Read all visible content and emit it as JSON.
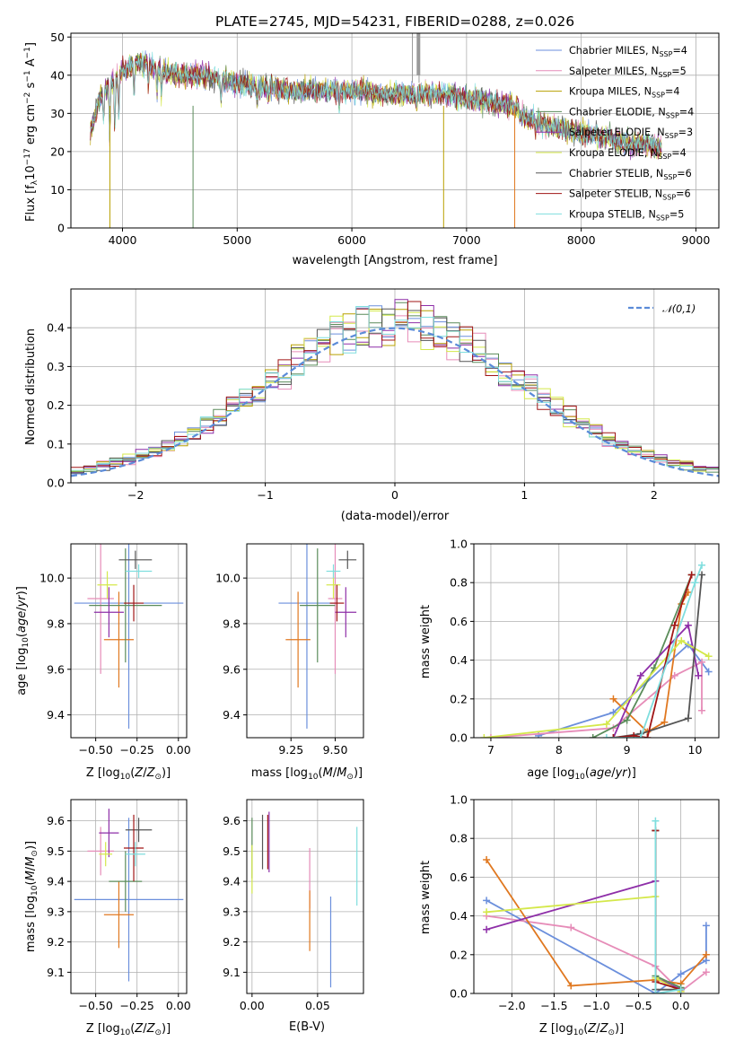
{
  "chart_data": [
    {
      "type": "line",
      "title": "PLATE=2745, MJD=54231, FIBERID=0288, z=0.026",
      "xlabel": "wavelength [Angstrom, rest frame]",
      "ylabel": "Flux [f_λ 10^-17 erg cm^-2 s^-1 A^-1]",
      "xlim": [
        3550,
        9200
      ],
      "ylim": [
        0,
        51
      ],
      "xticks": [
        4000,
        5000,
        6000,
        7000,
        8000,
        9000
      ],
      "yticks": [
        0,
        10,
        20,
        30,
        40,
        50
      ],
      "legend_position": "top-right",
      "series": [
        {
          "name": "Chabrier MILES, N_SSP=4",
          "color": "#6b8fdc"
        },
        {
          "name": "Salpeter MILES, N_SSP=5",
          "color": "#e68cb8"
        },
        {
          "name": "Kroupa MILES, N_SSP=4",
          "color": "#b8a000"
        },
        {
          "name": "Chabrier ELODIE, N_SSP=4",
          "color": "#5a8c5a"
        },
        {
          "name": "Salpeter ELODIE, N_SSP=3",
          "color": "#8e2fa8"
        },
        {
          "name": "Kroupa ELODIE, N_SSP=4",
          "color": "#d4e84a"
        },
        {
          "name": "Chabrier STELIB, N_SSP=6",
          "color": "#555555"
        },
        {
          "name": "Salpeter STELIB, N_SSP=6",
          "color": "#a01616"
        },
        {
          "name": "Kroupa STELIB, N_SSP=5",
          "color": "#7fdede"
        }
      ],
      "continuum": {
        "x": [
          3720,
          3800,
          3900,
          4000,
          4100,
          4200,
          4300,
          4500,
          4700,
          5000,
          5200,
          5500,
          5800,
          6000,
          6300,
          6600,
          6800,
          7000,
          7200,
          7400,
          7600,
          7800,
          8000,
          8200,
          8400,
          8600,
          8700
        ],
        "y": [
          25,
          34,
          38,
          41,
          43,
          43,
          42,
          40,
          40,
          38,
          37,
          36,
          36,
          36,
          35,
          35,
          35,
          34,
          33,
          32,
          30,
          28,
          27,
          26,
          24,
          24,
          23
        ]
      }
    },
    {
      "type": "bar",
      "xlabel": "(data-model)/error",
      "ylabel": "Normed distribution",
      "xlim": [
        -2.5,
        2.5
      ],
      "ylim": [
        0,
        0.5
      ],
      "xticks": [
        -2,
        -1,
        0,
        1,
        2
      ],
      "yticks": [
        0.0,
        0.1,
        0.2,
        0.3,
        0.4
      ],
      "legend": "𝒩(0,1)",
      "legend_position": "top-right",
      "normal_curve": {
        "mean": 0,
        "sigma": 1,
        "color": "#5b8bd8"
      }
    },
    {
      "type": "scatter",
      "xlabel": "Z [log10(Z/Z⊙)]",
      "ylabel": "age  [log10(age/yr)]",
      "xlim": [
        -0.65,
        0.05
      ],
      "ylim": [
        9.3,
        10.15
      ],
      "xticks": [
        -0.5,
        -0.25,
        0.0
      ],
      "xticklabels": [
        "−0.50",
        "−0.25",
        "0.00"
      ],
      "yticks": [
        9.4,
        9.6,
        9.8,
        10.0
      ],
      "points": [
        {
          "x": -0.3,
          "y": 9.89,
          "xerr": 0.33,
          "yerr": 0.55,
          "color": "#6b8fdc"
        },
        {
          "x": -0.47,
          "y": 9.91,
          "xerr": 0.08,
          "yerr": 0.33,
          "color": "#e68cb8"
        },
        {
          "x": -0.36,
          "y": 9.73,
          "xerr": 0.09,
          "yerr": 0.21,
          "color": "#e07820"
        },
        {
          "x": -0.32,
          "y": 9.88,
          "xerr": 0.22,
          "yerr": 0.25,
          "color": "#5a8c5a"
        },
        {
          "x": -0.42,
          "y": 9.85,
          "xerr": 0.09,
          "yerr": 0.11,
          "color": "#8e2fa8"
        },
        {
          "x": -0.43,
          "y": 9.97,
          "xerr": 0.06,
          "yerr": 0.06,
          "color": "#d4e84a"
        },
        {
          "x": -0.26,
          "y": 10.08,
          "xerr": 0.1,
          "yerr": 0.04,
          "color": "#555555"
        },
        {
          "x": -0.27,
          "y": 9.89,
          "xerr": 0.06,
          "yerr": 0.08,
          "color": "#a01616"
        },
        {
          "x": -0.24,
          "y": 10.03,
          "xerr": 0.08,
          "yerr": 0.03,
          "color": "#7fdede"
        }
      ]
    },
    {
      "type": "scatter",
      "xlabel": "mass [log10(M/M⊙)]",
      "ylabel": "",
      "xlim": [
        9.0,
        9.66
      ],
      "ylim": [
        9.3,
        10.15
      ],
      "xticks": [
        9.25,
        9.5
      ],
      "xticklabels": [
        "9.25",
        "9.50"
      ],
      "yticks": [
        9.4,
        9.6,
        9.8,
        10.0
      ],
      "points": [
        {
          "x": 9.34,
          "y": 9.89,
          "xerr": 0.16,
          "yerr": 0.55,
          "color": "#6b8fdc"
        },
        {
          "x": 9.5,
          "y": 9.91,
          "xerr": 0.04,
          "yerr": 0.33,
          "color": "#e68cb8"
        },
        {
          "x": 9.29,
          "y": 9.73,
          "xerr": 0.07,
          "yerr": 0.21,
          "color": "#e07820"
        },
        {
          "x": 9.4,
          "y": 9.88,
          "xerr": 0.1,
          "yerr": 0.25,
          "color": "#5a8c5a"
        },
        {
          "x": 9.56,
          "y": 9.85,
          "xerr": 0.06,
          "yerr": 0.11,
          "color": "#8e2fa8"
        },
        {
          "x": 9.49,
          "y": 9.97,
          "xerr": 0.04,
          "yerr": 0.06,
          "color": "#d4e84a"
        },
        {
          "x": 9.57,
          "y": 10.08,
          "xerr": 0.05,
          "yerr": 0.04,
          "color": "#555555"
        },
        {
          "x": 9.51,
          "y": 9.89,
          "xerr": 0.04,
          "yerr": 0.08,
          "color": "#a01616"
        },
        {
          "x": 9.49,
          "y": 10.03,
          "xerr": 0.04,
          "yerr": 0.03,
          "color": "#7fdede"
        }
      ]
    },
    {
      "type": "line",
      "xlabel": "age  [log10(age/yr)]",
      "ylabel": "mass weight",
      "xlim": [
        6.75,
        10.35
      ],
      "ylim": [
        0,
        1.0
      ],
      "xticks": [
        7,
        8,
        9,
        10
      ],
      "yticks": [
        0.0,
        0.2,
        0.4,
        0.6,
        0.8,
        1.0
      ],
      "series": [
        {
          "color": "#6b8fdc",
          "x": [
            7.7,
            8.8,
            9.9,
            10.2
          ],
          "y": [
            0.01,
            0.13,
            0.48,
            0.34
          ]
        },
        {
          "color": "#e68cb8",
          "x": [
            7.0,
            8.8,
            9.7,
            10.1,
            10.1
          ],
          "y": [
            0.0,
            0.05,
            0.32,
            0.39,
            0.14
          ]
        },
        {
          "color": "#e07820",
          "x": [
            8.8,
            9.3,
            9.55,
            9.8,
            9.9
          ],
          "y": [
            0.2,
            0.03,
            0.08,
            0.69,
            0.75
          ]
        },
        {
          "color": "#5a8c5a",
          "x": [
            8.5,
            9.0,
            9.4,
            9.95
          ],
          "y": [
            0.0,
            0.09,
            0.36,
            0.84
          ]
        },
        {
          "color": "#8e2fa8",
          "x": [
            8.8,
            9.2,
            9.9,
            10.05
          ],
          "y": [
            0.0,
            0.32,
            0.58,
            0.32
          ]
        },
        {
          "color": "#d4e84a",
          "x": [
            6.9,
            8.7,
            9.8,
            10.2
          ],
          "y": [
            0.0,
            0.07,
            0.5,
            0.42
          ]
        },
        {
          "color": "#555555",
          "x": [
            8.8,
            9.2,
            9.9,
            10.1
          ],
          "y": [
            0.0,
            0.02,
            0.1,
            0.84
          ]
        },
        {
          "color": "#a01616",
          "x": [
            8.8,
            9.1,
            9.3,
            9.7,
            9.95
          ],
          "y": [
            0.0,
            0.01,
            0.0,
            0.58,
            0.84
          ]
        },
        {
          "color": "#7fdede",
          "x": [
            8.7,
            9.2,
            10.0,
            10.1
          ],
          "y": [
            0.0,
            0.0,
            0.8,
            0.89
          ]
        }
      ]
    },
    {
      "type": "scatter",
      "xlabel": "Z [log10(Z/Z⊙)]",
      "ylabel": "mass [log10(M/M⊙)]",
      "xlim": [
        -0.65,
        0.05
      ],
      "ylim": [
        9.03,
        9.67
      ],
      "xticks": [
        -0.5,
        -0.25,
        0.0
      ],
      "xticklabels": [
        "−0.50",
        "−0.25",
        "0.00"
      ],
      "yticks": [
        9.1,
        9.2,
        9.3,
        9.4,
        9.5,
        9.6
      ],
      "points": [
        {
          "x": -0.3,
          "y": 9.34,
          "xerr": 0.33,
          "yerr": 0.27,
          "color": "#6b8fdc"
        },
        {
          "x": -0.47,
          "y": 9.5,
          "xerr": 0.08,
          "yerr": 0.08,
          "color": "#e68cb8"
        },
        {
          "x": -0.36,
          "y": 9.29,
          "xerr": 0.09,
          "yerr": 0.11,
          "color": "#e07820"
        },
        {
          "x": -0.32,
          "y": 9.4,
          "xerr": 0.1,
          "yerr": 0.1,
          "color": "#5a8c5a"
        },
        {
          "x": -0.42,
          "y": 9.56,
          "xerr": 0.06,
          "yerr": 0.08,
          "color": "#8e2fa8"
        },
        {
          "x": -0.44,
          "y": 9.49,
          "xerr": 0.04,
          "yerr": 0.04,
          "color": "#d4e84a"
        },
        {
          "x": -0.24,
          "y": 9.57,
          "xerr": 0.08,
          "yerr": 0.04,
          "color": "#555555"
        },
        {
          "x": -0.27,
          "y": 9.51,
          "xerr": 0.06,
          "yerr": 0.11,
          "color": "#a01616"
        },
        {
          "x": -0.26,
          "y": 9.49,
          "xerr": 0.06,
          "yerr": 0.04,
          "color": "#7fdede"
        }
      ]
    },
    {
      "type": "scatter",
      "xlabel": "E(B-V)",
      "ylabel": "",
      "xlim": [
        -0.004,
        0.085
      ],
      "ylim": [
        9.03,
        9.67
      ],
      "xticks": [
        0.0,
        0.05
      ],
      "xticklabels": [
        "0.00",
        "0.05"
      ],
      "yticks": [
        9.1,
        9.2,
        9.3,
        9.4,
        9.5,
        9.6
      ],
      "points": [
        {
          "x": 0.06,
          "y": 9.2,
          "yerr": 0.15,
          "color": "#6b8fdc"
        },
        {
          "x": 0.044,
          "y": 9.41,
          "yerr": 0.1,
          "color": "#e68cb8"
        },
        {
          "x": 0.044,
          "y": 9.27,
          "yerr": 0.1,
          "color": "#e07820"
        },
        {
          "x": 0.0,
          "y": 9.51,
          "yerr": 0.1,
          "color": "#5a8c5a"
        },
        {
          "x": 0.013,
          "y": 9.53,
          "yerr": 0.1,
          "color": "#8e2fa8"
        },
        {
          "x": 0.0,
          "y": 9.44,
          "yerr": 0.08,
          "color": "#d4e84a"
        },
        {
          "x": 0.008,
          "y": 9.53,
          "yerr": 0.09,
          "color": "#555555"
        },
        {
          "x": 0.012,
          "y": 9.53,
          "yerr": 0.09,
          "color": "#a01616"
        },
        {
          "x": 0.08,
          "y": 9.45,
          "yerr": 0.13,
          "color": "#7fdede"
        }
      ]
    },
    {
      "type": "line",
      "xlabel": "Z [log10(Z/Z⊙)]",
      "ylabel": "mass weight",
      "xlim": [
        -2.45,
        0.45
      ],
      "ylim": [
        0,
        1.0
      ],
      "xticks": [
        -2.0,
        -1.5,
        -1.0,
        -0.5,
        0.0
      ],
      "xticklabels": [
        "−2.0",
        "−1.5",
        "−1.0",
        "−0.5",
        "0.0"
      ],
      "yticks": [
        0.0,
        0.2,
        0.4,
        0.6,
        0.8,
        1.0
      ],
      "series": [
        {
          "color": "#6b8fdc",
          "x": [
            -2.3,
            -0.3,
            0.0,
            0.3,
            0.3
          ],
          "y": [
            0.48,
            0.0,
            0.1,
            0.17,
            0.35
          ]
        },
        {
          "color": "#e68cb8",
          "x": [
            -2.3,
            -1.3,
            -0.3,
            0.0,
            0.3
          ],
          "y": [
            0.4,
            0.34,
            0.14,
            0.01,
            0.11
          ]
        },
        {
          "color": "#e07820",
          "x": [
            -2.3,
            -1.3,
            -0.3,
            0.0,
            0.3
          ],
          "y": [
            0.69,
            0.04,
            0.07,
            0.05,
            0.2
          ]
        },
        {
          "color": "#5a8c5a",
          "x": [
            -0.3,
            -0.3,
            0.0
          ],
          "y": [
            0.84,
            0.09,
            0.03
          ]
        },
        {
          "color": "#8e2fa8",
          "x": [
            -2.3,
            -0.3,
            -0.3,
            0.0
          ],
          "y": [
            0.33,
            0.58,
            0.08,
            0.02
          ]
        },
        {
          "color": "#d4e84a",
          "x": [
            -2.3,
            -0.3,
            -0.3,
            0.0
          ],
          "y": [
            0.42,
            0.5,
            0.08,
            0.01
          ]
        },
        {
          "color": "#555555",
          "x": [
            -0.3,
            -0.3,
            0.0
          ],
          "y": [
            0.84,
            0.02,
            0.02
          ]
        },
        {
          "color": "#a01616",
          "x": [
            -0.3,
            -0.3,
            0.0
          ],
          "y": [
            0.84,
            0.06,
            0.02
          ]
        },
        {
          "color": "#7fdede",
          "x": [
            -0.3,
            -0.3,
            0.0
          ],
          "y": [
            0.89,
            0.0,
            0.02
          ]
        }
      ]
    }
  ],
  "labels": {
    "title": "PLATE=2745, MJD=54231, FIBERID=0288, z=0.026",
    "p1_xlabel": "wavelength [Angstrom, rest frame]",
    "p2_xlabel": "(data-model)/error",
    "p2_ylabel": "Normed distribution",
    "p2_legend": "𝒩(0,1)",
    "p5_ylabel": "mass weight",
    "p8_ylabel": "mass weight",
    "p7_xlabel": "E(B-V)"
  }
}
